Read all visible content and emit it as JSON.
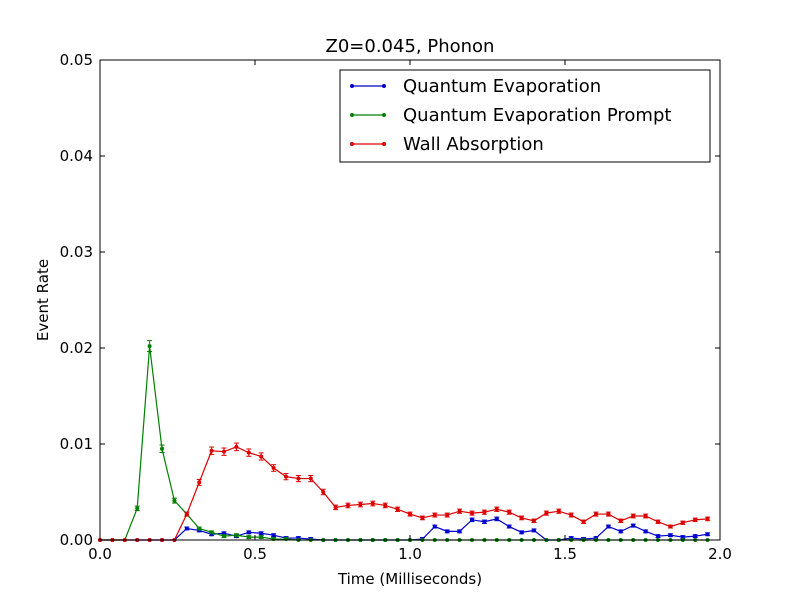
{
  "chart_data": {
    "type": "line",
    "title": "Z0=0.045, Phonon",
    "xlabel": "Time (Milliseconds)",
    "ylabel": "Event Rate",
    "xlim": [
      0.0,
      2.0
    ],
    "ylim": [
      0.0,
      0.05
    ],
    "xticks": [
      "0.0",
      "0.5",
      "1.0",
      "1.5",
      "2.0"
    ],
    "yticks": [
      "0.00",
      "0.01",
      "0.02",
      "0.03",
      "0.04",
      "0.05"
    ],
    "legend_position": "top-right",
    "grid": false,
    "x": [
      0.0,
      0.04,
      0.08,
      0.12,
      0.16,
      0.2,
      0.24,
      0.28,
      0.32,
      0.36,
      0.4,
      0.44,
      0.48,
      0.52,
      0.56,
      0.6,
      0.64,
      0.68,
      0.72,
      0.76,
      0.8,
      0.84,
      0.88,
      0.92,
      0.96,
      1.0,
      1.04,
      1.08,
      1.12,
      1.16,
      1.2,
      1.24,
      1.28,
      1.32,
      1.36,
      1.4,
      1.44,
      1.48,
      1.52,
      1.56,
      1.6,
      1.64,
      1.68,
      1.72,
      1.76,
      1.8,
      1.84,
      1.88,
      1.92,
      1.96
    ],
    "series": [
      {
        "name": "Quantum Evaporation",
        "color": "#0000cc",
        "values": [
          0,
          0,
          0,
          0,
          0,
          0,
          0,
          0.0012,
          0.001,
          0.0006,
          0.0007,
          0.0004,
          0.0008,
          0.0007,
          0.0005,
          0.0002,
          0.0002,
          0.0001,
          0,
          0,
          0,
          0,
          0,
          0,
          0,
          0,
          0.0001,
          0.0014,
          0.0009,
          0.0009,
          0.0021,
          0.0019,
          0.0022,
          0.0014,
          0.0008,
          0.001,
          0,
          0,
          0.0002,
          0.0001,
          0.0002,
          0.0014,
          0.0009,
          0.0015,
          0.0009,
          0.0004,
          0.0005,
          0.0003,
          0.0004,
          0.0006
        ]
      },
      {
        "name": "Quantum Evaporation Prompt",
        "color": "#007f00",
        "values": [
          0,
          0,
          0,
          0.0033,
          0.0202,
          0.0095,
          0.0041,
          0.0027,
          0.0012,
          0.0008,
          0.0004,
          0.0005,
          0.0003,
          0.0003,
          0.0001,
          0.0001,
          0,
          0,
          0,
          0,
          0,
          0,
          0,
          0,
          0,
          0,
          0,
          0,
          0,
          0,
          0,
          0,
          0,
          0,
          0,
          0,
          0,
          0,
          0,
          0,
          0,
          0,
          0,
          0,
          0,
          0,
          0,
          0,
          0,
          0
        ]
      },
      {
        "name": "Wall Absorption",
        "color": "#dd0000",
        "values": [
          0,
          0,
          0,
          0,
          0,
          0,
          0,
          0.0027,
          0.006,
          0.0093,
          0.0092,
          0.0097,
          0.0091,
          0.0087,
          0.0075,
          0.0066,
          0.0064,
          0.0064,
          0.005,
          0.0034,
          0.0036,
          0.0037,
          0.0038,
          0.0036,
          0.0032,
          0.0027,
          0.0023,
          0.0026,
          0.0026,
          0.003,
          0.0028,
          0.0029,
          0.0032,
          0.0029,
          0.0023,
          0.002,
          0.0028,
          0.003,
          0.0026,
          0.0019,
          0.0027,
          0.0027,
          0.002,
          0.0025,
          0.0025,
          0.0019,
          0.0014,
          0.0018,
          0.0021,
          0.0022
        ]
      }
    ]
  }
}
